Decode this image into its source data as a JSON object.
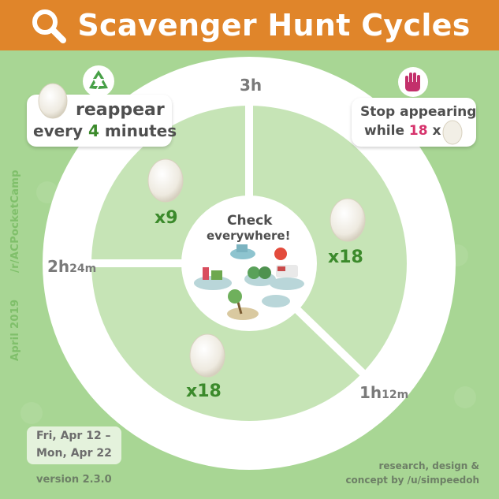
{
  "header": {
    "title": "Scavenger Hunt Cycles",
    "icon": "magnifier-icon",
    "color": "#e0852a"
  },
  "reappear": {
    "line1": "reappear",
    "line2_prefix": "every ",
    "line2_number": "4",
    "line2_suffix": " minutes",
    "icon": "recycle-icon"
  },
  "stop": {
    "line1": "Stop appearing",
    "line2_prefix": "while ",
    "line2_number": "18",
    "line2_suffix": " x",
    "icon": "hand-stop-icon"
  },
  "center": {
    "line1": "Check",
    "line2": "everywhere!"
  },
  "segments": [
    {
      "count": "x9"
    },
    {
      "count": "x18"
    },
    {
      "count": "x18"
    }
  ],
  "time_labels": {
    "top": "3h",
    "left_main": "2h",
    "left_sub": "24m",
    "right_main": "1h",
    "right_sub": "12m"
  },
  "side": {
    "date": "April 2019",
    "subreddit": "/r/ACPocketCamp"
  },
  "dates": {
    "line1": "Fri, Apr 12 –",
    "line2": "Mon, Apr 22"
  },
  "version": "version 2.3.0",
  "credit": {
    "line1": "research, design &",
    "line2": "concept by /u/simpeedoh"
  },
  "colors": {
    "background": "#a8d694",
    "ring": "#ffffff",
    "inner": "#c6e4b6",
    "accent_green": "#3b8a2b",
    "accent_pink": "#d6336c"
  }
}
